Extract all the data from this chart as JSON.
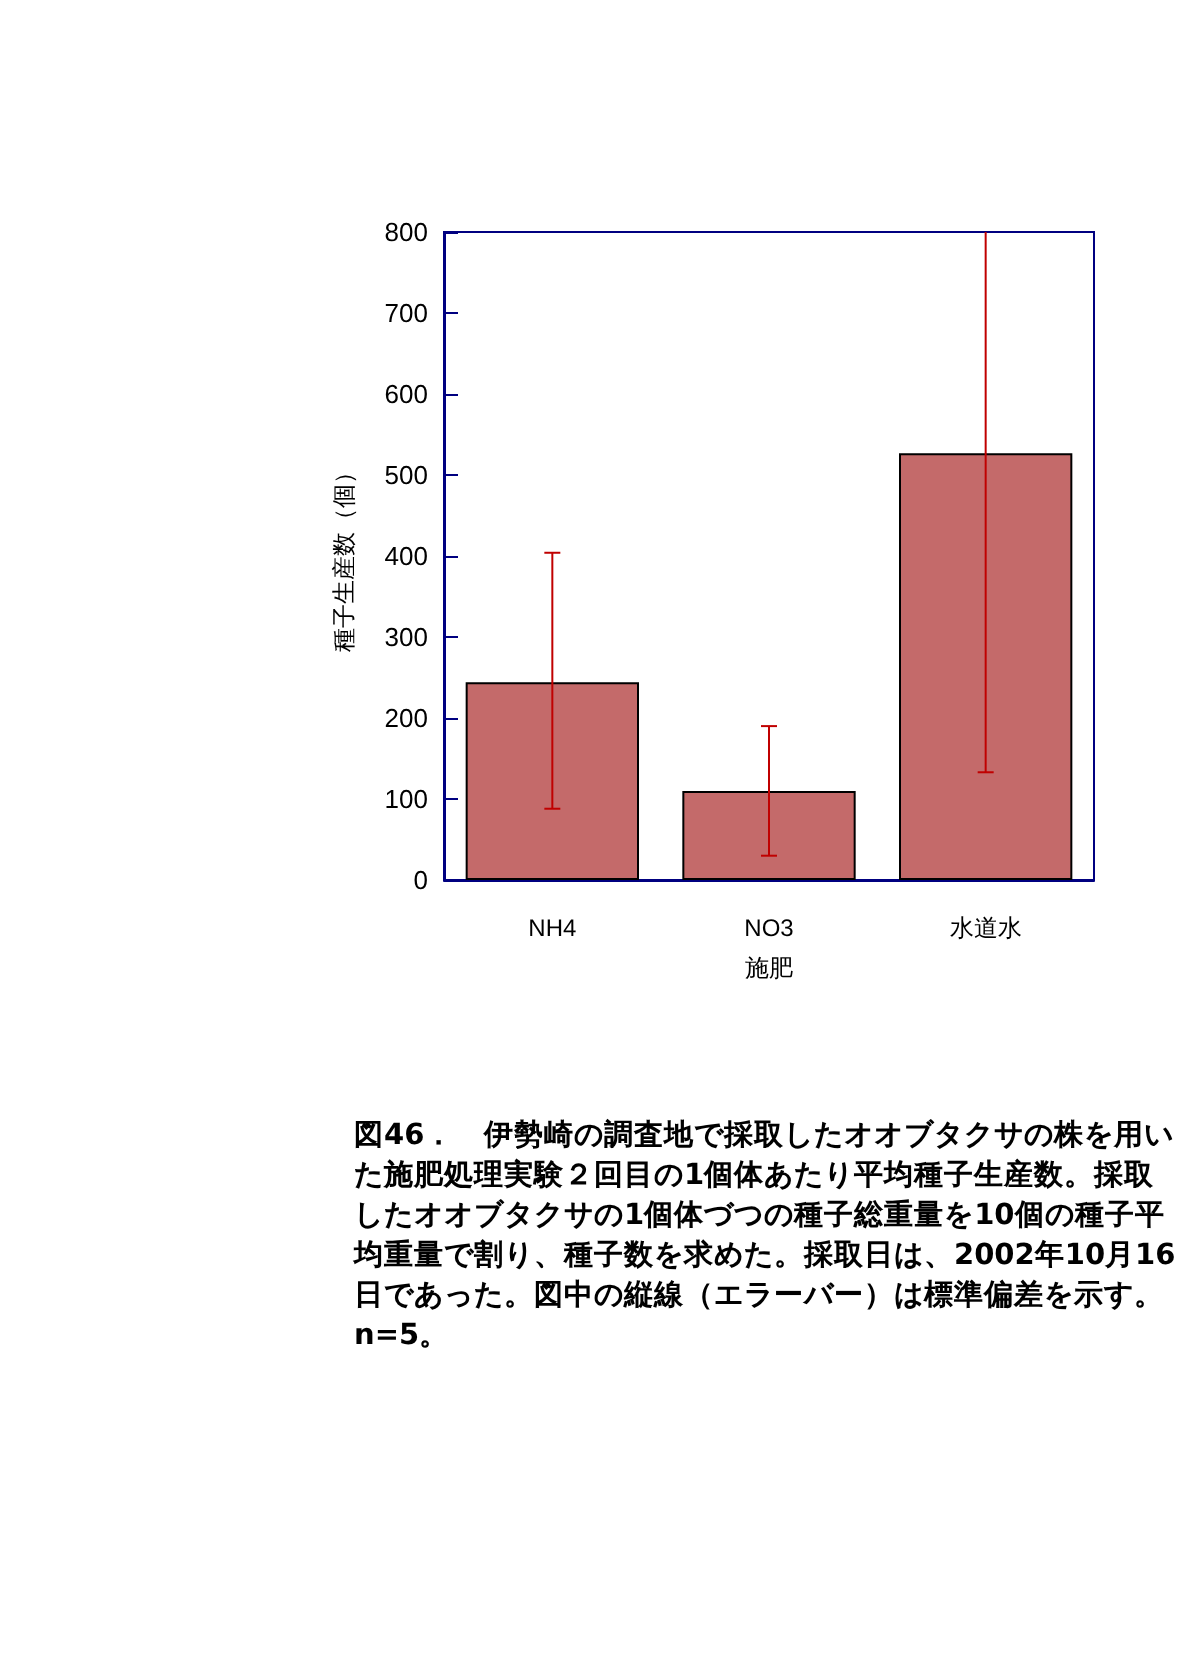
{
  "chart_data": {
    "type": "bar",
    "xlabel": "施肥",
    "ylabel": "種子生産数（個）",
    "categories": [
      "NH4",
      "NO3",
      "水道水"
    ],
    "values": [
      244,
      110,
      527
    ],
    "errors": [
      [
        88,
        404
      ],
      [
        30,
        190
      ],
      [
        133,
        800
      ]
    ],
    "color": "#c46a6a",
    "ylim": [
      0,
      800
    ],
    "yticks": [
      0,
      100,
      200,
      300,
      400,
      500,
      600,
      700,
      800
    ],
    "grid": false,
    "annotations": [
      "図46．　伊勢崎の調査地で採取したオオブタクサの株を用いた施肥処理実験２回目の1個体あたり平均種子生産数。採取したオオブタクサの1個体づつの種子総重量を10個の種子平均重量で割り、種子数を求めた。採取日は、2002年10月16日であった。図中の縦線（エラーバー）は標準偏差を示す。n=5。"
    ]
  }
}
